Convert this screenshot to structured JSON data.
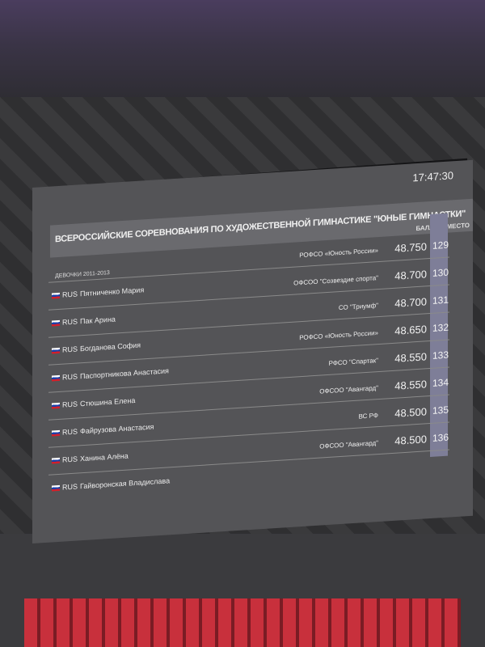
{
  "board": {
    "time": "17:47:30",
    "title": "ВСЕРОССИЙСКИЕ СОРЕВНОВАНИЯ ПО ХУДОЖЕСТВЕННОЙ ГИМНАСТИКЕ \"ЮНЫЕ ГИМНАСТКИ\"",
    "score_header": "БАЛЛ",
    "place_header": "МЕСТО",
    "category": "ДЕВОЧКИ 2011-2013",
    "rows": [
      {
        "country": "RUS",
        "name": "Пятниченко Мария",
        "club": "РОФСО «Юность России»",
        "score": "48.750",
        "place": "129"
      },
      {
        "country": "RUS",
        "name": "Пак Арина",
        "club": "ОФСОО \"Созвездие спорта\"",
        "score": "48.700",
        "place": "130"
      },
      {
        "country": "RUS",
        "name": "Богданова София",
        "club": "СО \"Триумф\"",
        "score": "48.700",
        "place": "131"
      },
      {
        "country": "RUS",
        "name": "Паспортникова Анастасия",
        "club": "РОФСО «Юность России»",
        "score": "48.650",
        "place": "132"
      },
      {
        "country": "RUS",
        "name": "Стюшина Елена",
        "club": "РФСО \"Спартак\"",
        "score": "48.550",
        "place": "133"
      },
      {
        "country": "RUS",
        "name": "Файрузова Анастасия",
        "club": "ОФСОО \"Авангард\"",
        "score": "48.550",
        "place": "134"
      },
      {
        "country": "RUS",
        "name": "Ханина Алёна",
        "club": "ВС РФ",
        "score": "48.500",
        "place": "135"
      },
      {
        "country": "RUS",
        "name": "Гайворонская Владислава",
        "club": "ОФСОО \"Авангард\"",
        "score": "48.500",
        "place": "136"
      }
    ]
  }
}
